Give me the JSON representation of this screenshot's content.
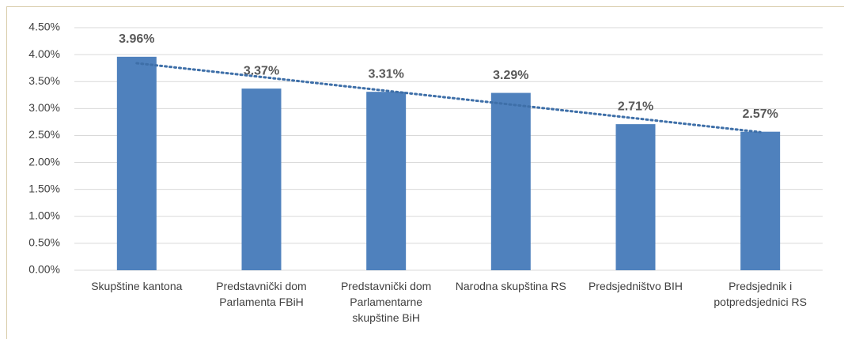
{
  "chart_data": {
    "type": "bar",
    "categories": [
      "Skupštine kantona",
      "Predstavnički dom Parlamenta FBiH",
      "Predstavnički dom Parlamentarne skupštine BiH",
      "Narodna skupština RS",
      "Predsjedništvo BIH",
      "Predsjednik i potpredsjednici RS"
    ],
    "values": [
      3.96,
      3.37,
      3.31,
      3.29,
      2.71,
      2.57
    ],
    "value_labels": [
      "3.96%",
      "3.37%",
      "3.31%",
      "3.29%",
      "2.71%",
      "2.57%"
    ],
    "color": "#4f81bd",
    "trendline": true,
    "trendline_color": "#3e6fa8",
    "ylim": [
      0,
      4.5
    ],
    "yticks": [
      {
        "value": 0,
        "label": "0.00%"
      },
      {
        "value": 0.5,
        "label": "0.50%"
      },
      {
        "value": 1,
        "label": "1.00%"
      },
      {
        "value": 1.5,
        "label": "1.50%"
      },
      {
        "value": 2,
        "label": "2.00%"
      },
      {
        "value": 2.5,
        "label": "2.50%"
      },
      {
        "value": 3,
        "label": "3.00%"
      },
      {
        "value": 3.5,
        "label": "3.50%"
      },
      {
        "value": 4,
        "label": "4.00%"
      },
      {
        "value": 4.5,
        "label": "4.50%"
      }
    ],
    "grid": true
  }
}
